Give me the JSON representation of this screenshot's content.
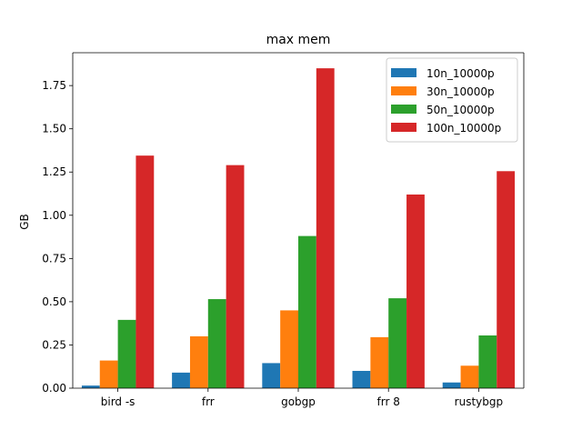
{
  "chart_data": {
    "type": "bar",
    "title": "max mem",
    "xlabel": "",
    "ylabel": "GB",
    "categories": [
      "bird -s",
      "frr",
      "gobgp",
      "frr 8",
      "rustybgp"
    ],
    "ylim": [
      0,
      1.94
    ],
    "yticks": [
      "0.00",
      "0.25",
      "0.50",
      "0.75",
      "1.00",
      "1.25",
      "1.50",
      "1.75"
    ],
    "ytick_values": [
      0,
      0.25,
      0.5,
      0.75,
      1.0,
      1.25,
      1.5,
      1.75
    ],
    "grid": false,
    "legend_position": "top-right",
    "series": [
      {
        "name": "10n_10000p",
        "color": "#1f77b4",
        "values": [
          0.015,
          0.09,
          0.145,
          0.1,
          0.033
        ]
      },
      {
        "name": "30n_10000p",
        "color": "#ff7f0e",
        "values": [
          0.16,
          0.3,
          0.45,
          0.295,
          0.13
        ]
      },
      {
        "name": "50n_10000p",
        "color": "#2ca02c",
        "values": [
          0.395,
          0.515,
          0.88,
          0.52,
          0.305
        ]
      },
      {
        "name": "100n_10000p",
        "color": "#d62728",
        "values": [
          1.345,
          1.29,
          1.85,
          1.12,
          1.255
        ]
      }
    ]
  }
}
